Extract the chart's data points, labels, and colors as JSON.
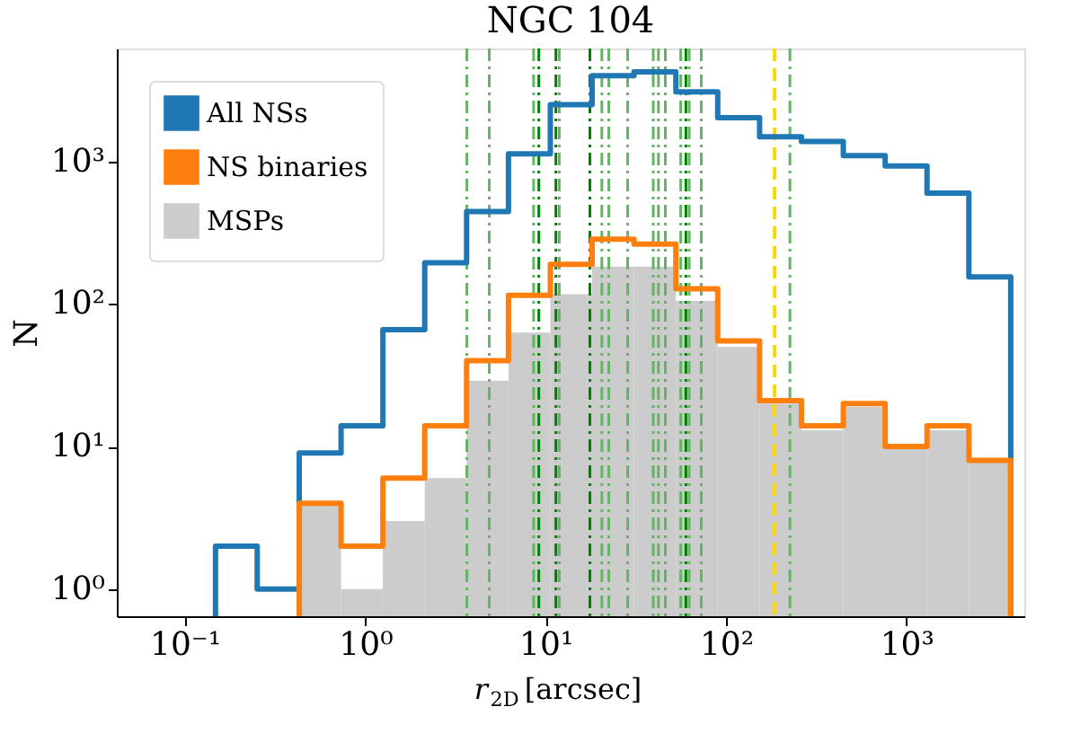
{
  "chart_data": {
    "type": "histogram",
    "title": "NGC 104",
    "xlabel": "r$_{2D}$ [arcsec]",
    "ylabel": "N",
    "bins": [
      0.148,
      0.252,
      0.431,
      0.735,
      1.253,
      2.138,
      3.648,
      6.223,
      10.62,
      18.11,
      30.9,
      52.72,
      89.95,
      153.5,
      261.8,
      446.7,
      762.1,
      1300,
      2218,
      3784
    ],
    "series": [
      {
        "name": "All NSs",
        "type": "step",
        "color": "#1f77b4",
        "x": [
          0.148,
          0.252,
          0.431,
          0.735,
          1.253,
          2.138,
          3.648,
          6.223,
          10.62,
          18.11,
          30.9,
          52.72,
          89.95,
          153.5,
          261.8,
          446.7,
          762.1,
          1300,
          2218,
          3784
        ],
        "values": [
          2,
          1,
          9,
          14,
          66,
          195,
          445,
          1130,
          2500,
          4000,
          4250,
          3080,
          2030,
          1490,
          1380,
          1100,
          930,
          600,
          155,
          155
        ]
      },
      {
        "name": "NS binaries",
        "type": "step",
        "color": "#ff7f0e",
        "x": [
          0.431,
          0.735,
          1.253,
          2.138,
          3.648,
          6.223,
          10.62,
          18.11,
          30.9,
          52.72,
          89.95,
          153.5,
          261.8,
          446.7,
          762.1,
          1300,
          2218,
          3784
        ],
        "values": [
          4,
          2,
          6,
          14,
          40,
          115,
          190,
          285,
          263,
          128,
          55,
          21,
          14,
          20,
          10,
          14,
          8,
          8
        ]
      },
      {
        "name": "MSPs",
        "type": "histogram",
        "color": "#cccccc",
        "values": [
          null,
          null,
          4,
          1,
          3,
          6,
          29,
          63,
          117,
          183,
          183,
          105,
          50,
          20,
          13,
          19,
          10,
          13,
          8
        ]
      }
    ],
    "log": "xy",
    "xlim": [
      0.042,
      4500
    ],
    "ylim": [
      0.645,
      6200
    ],
    "xticks": [
      {
        "value": 0.1,
        "label": "10⁻¹"
      },
      {
        "value": 1,
        "label": "10⁰"
      },
      {
        "value": 10,
        "label": "10¹"
      },
      {
        "value": 100,
        "label": "10²"
      },
      {
        "value": 1000,
        "label": "10³"
      }
    ],
    "yticks": [
      {
        "value": 1,
        "label": "10⁰"
      },
      {
        "value": 10,
        "label": "10¹"
      },
      {
        "value": 100,
        "label": "10²"
      },
      {
        "value": 1000,
        "label": "10³"
      }
    ],
    "grid": false,
    "legend": "top left",
    "ref_lines": [
      {
        "axis": "x",
        "value": 3.66,
        "color": "#66b266",
        "line_style": "dashdot"
      },
      {
        "axis": "x",
        "value": 4.87,
        "color": "#66b266",
        "line_style": "dashdot"
      },
      {
        "axis": "x",
        "value": 8.58,
        "color": "#66b266",
        "line_style": "dashdot"
      },
      {
        "axis": "x",
        "value": 9.17,
        "color": "#008000",
        "line_style": "dashdot"
      },
      {
        "axis": "x",
        "value": 11.4,
        "color": "#008000",
        "line_style": "dashdot"
      },
      {
        "axis": "x",
        "value": 11.9,
        "color": "#66b266",
        "line_style": "dashdot"
      },
      {
        "axis": "x",
        "value": 17.6,
        "color": "#008000",
        "line_style": "dashdot"
      },
      {
        "axis": "x",
        "value": 20.5,
        "color": "#66b266",
        "line_style": "dashdot"
      },
      {
        "axis": "x",
        "value": 22.4,
        "color": "#66b266",
        "line_style": "dashdot"
      },
      {
        "axis": "x",
        "value": 28.5,
        "color": "#66b266",
        "line_style": "dashdot"
      },
      {
        "axis": "x",
        "value": 39.5,
        "color": "#66b266",
        "line_style": "dashdot"
      },
      {
        "axis": "x",
        "value": 42.2,
        "color": "#66b266",
        "line_style": "dashdot"
      },
      {
        "axis": "x",
        "value": 46.1,
        "color": "#66b266",
        "line_style": "dashdot"
      },
      {
        "axis": "x",
        "value": 56.1,
        "color": "#66b266",
        "line_style": "dashdot"
      },
      {
        "axis": "x",
        "value": 59.9,
        "color": "#008000",
        "line_style": "dashdot"
      },
      {
        "axis": "x",
        "value": 62.5,
        "color": "#66b266",
        "line_style": "dashdot"
      },
      {
        "axis": "x",
        "value": 72.9,
        "color": "#66b266",
        "line_style": "dashdot"
      },
      {
        "axis": "x",
        "value": 226,
        "color": "#66b266",
        "line_style": "dashdot"
      },
      {
        "axis": "x",
        "value": 186,
        "color": "#ffd700",
        "line_style": "dashed"
      }
    ]
  }
}
